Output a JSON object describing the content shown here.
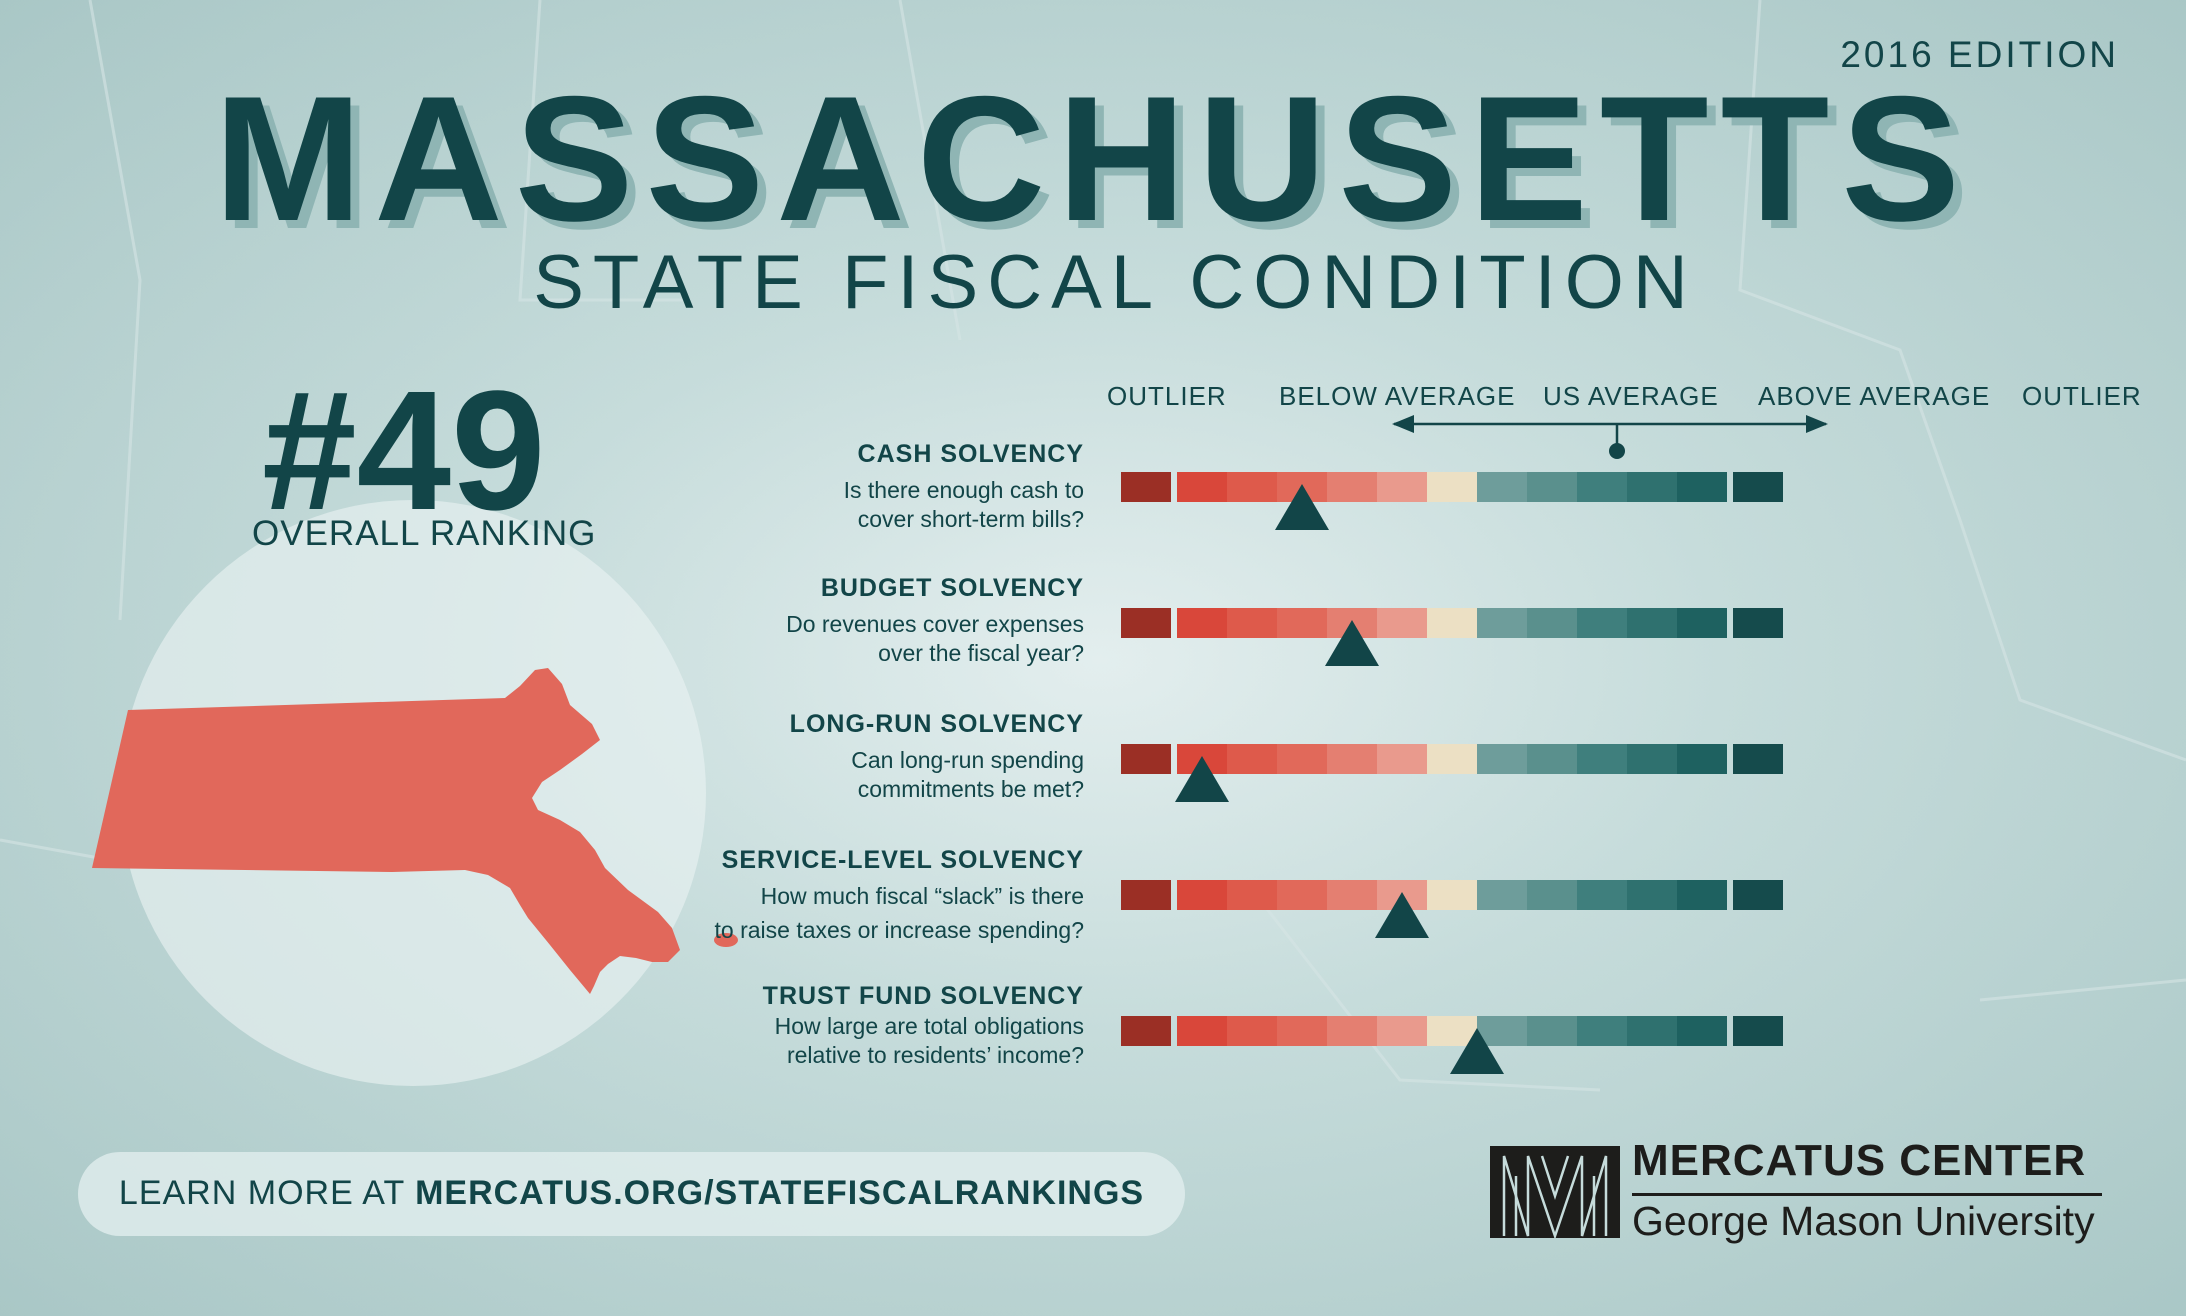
{
  "edition": "2016 EDITION",
  "title": "MASSACHUSETTS",
  "subtitle": "STATE FISCAL CONDITION",
  "ranking": {
    "number": "#49",
    "label": "OVERALL RANKING"
  },
  "scale_labels": {
    "outlier_left": "OUTLIER",
    "below_average": "BELOW AVERAGE",
    "us_average": "US AVERAGE",
    "above_average": "ABOVE AVERAGE",
    "outlier_right": "OUTLIER"
  },
  "scale_colors": [
    "#9b2f25",
    "#d9473a",
    "#de5a4b",
    "#e1695a",
    "#e47f71",
    "#e99a8d",
    "#ece0c4",
    "#6e9d9b",
    "#5a908d",
    "#3f7f7d",
    "#2f716f",
    "#1e6160",
    "#154b4c"
  ],
  "metrics": [
    {
      "title": "CASH SOLVENCY",
      "desc1": "Is there enough cash to",
      "desc2": "cover short-term bills?",
      "marker_segment": 3.5
    },
    {
      "title": "BUDGET SOLVENCY",
      "desc1": "Do revenues cover expenses",
      "desc2": "over the fiscal year?",
      "marker_segment": 4.5
    },
    {
      "title": "LONG-RUN SOLVENCY",
      "desc1": "Can long-run spending",
      "desc2": "commitments be met?",
      "marker_segment": 1.5
    },
    {
      "title": "SERVICE-LEVEL SOLVENCY",
      "desc1": "How much fiscal “slack” is there",
      "desc2": "to raise taxes or increase spending?",
      "marker_segment": 5.5
    },
    {
      "title": "TRUST FUND SOLVENCY",
      "desc1": "How large are total obligations",
      "desc2": "relative to residents’ income?",
      "marker_segment": 7.0
    }
  ],
  "footer": {
    "learn_more_prefix": "LEARN MORE AT ",
    "learn_more_url": "MERCATUS.ORG/STATEFISCALRANKINGS",
    "logo_name": "MERCATUS CENTER",
    "logo_university": "George Mason University"
  },
  "colors": {
    "primary": "#124548",
    "map": "#e1685b"
  }
}
